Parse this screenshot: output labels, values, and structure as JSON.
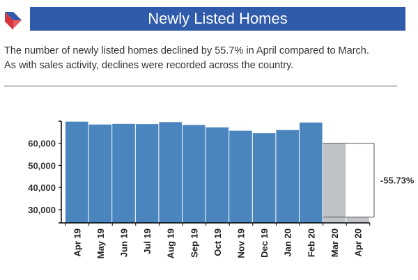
{
  "header": {
    "title": "Newly Listed Homes"
  },
  "description": {
    "line1": "The number of newly listed homes declined by 55.7% in April compared to March.",
    "line2": "As with sales activity, declines were recorded across the country."
  },
  "colors": {
    "title_bg": "#2f5baa",
    "bar_main": "#4a86bd",
    "bar_highlight": "#bfc3c7",
    "logo_blue": "#2f5baa",
    "logo_red": "#d9353e"
  },
  "chart_data": {
    "type": "bar",
    "title": "",
    "xlabel": "",
    "ylabel": "",
    "categories": [
      "Apr 19",
      "May 19",
      "Jun 19",
      "Jul 19",
      "Aug 19",
      "Sep 19",
      "Oct 19",
      "Nov 19",
      "Dec 19",
      "Jan 20",
      "Feb 20",
      "Mar 20",
      "Apr 20"
    ],
    "values": [
      69800,
      68500,
      68800,
      68700,
      69600,
      68300,
      67200,
      65700,
      64600,
      66000,
      69400,
      60000,
      26600
    ],
    "highlighted_categories": [
      "Mar 20",
      "Apr 20"
    ],
    "ylim": [
      24000,
      70000
    ],
    "yticks": [
      30000,
      40000,
      50000,
      60000
    ],
    "ytick_labels": [
      "30,000",
      "40,000",
      "50,000",
      "60,000"
    ],
    "annotation": "-55.73%",
    "grid": false
  }
}
